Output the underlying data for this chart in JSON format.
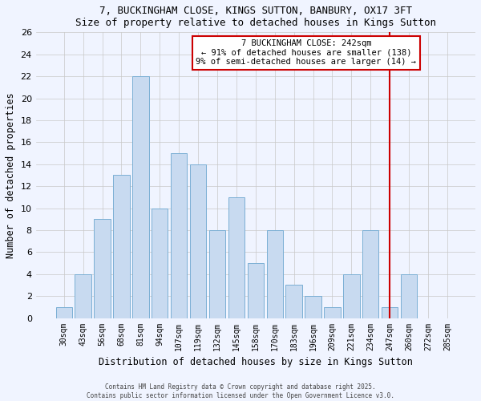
{
  "title": "7, BUCKINGHAM CLOSE, KINGS SUTTON, BANBURY, OX17 3FT",
  "subtitle": "Size of property relative to detached houses in Kings Sutton",
  "xlabel": "Distribution of detached houses by size in Kings Sutton",
  "ylabel": "Number of detached properties",
  "bar_color": "#c8daf0",
  "bar_edge_color": "#7bafd4",
  "categories": [
    "30sqm",
    "43sqm",
    "56sqm",
    "68sqm",
    "81sqm",
    "94sqm",
    "107sqm",
    "119sqm",
    "132sqm",
    "145sqm",
    "158sqm",
    "170sqm",
    "183sqm",
    "196sqm",
    "209sqm",
    "221sqm",
    "234sqm",
    "247sqm",
    "260sqm",
    "272sqm",
    "285sqm"
  ],
  "values": [
    1,
    4,
    9,
    13,
    22,
    10,
    15,
    14,
    8,
    11,
    5,
    8,
    3,
    2,
    1,
    4,
    8,
    1,
    4,
    0,
    0
  ],
  "ylim": [
    0,
    26
  ],
  "yticks": [
    0,
    2,
    4,
    6,
    8,
    10,
    12,
    14,
    16,
    18,
    20,
    22,
    24,
    26
  ],
  "marker_idx": 17,
  "marker_label_title": "7 BUCKINGHAM CLOSE: 242sqm",
  "marker_label_line1": "← 91% of detached houses are smaller (138)",
  "marker_label_line2": "9% of semi-detached houses are larger (14) →",
  "marker_color": "#cc0000",
  "footer1": "Contains HM Land Registry data © Crown copyright and database right 2025.",
  "footer2": "Contains public sector information licensed under the Open Government Licence v3.0.",
  "bg_color": "#f0f4ff",
  "grid_color": "#c8c8c8"
}
